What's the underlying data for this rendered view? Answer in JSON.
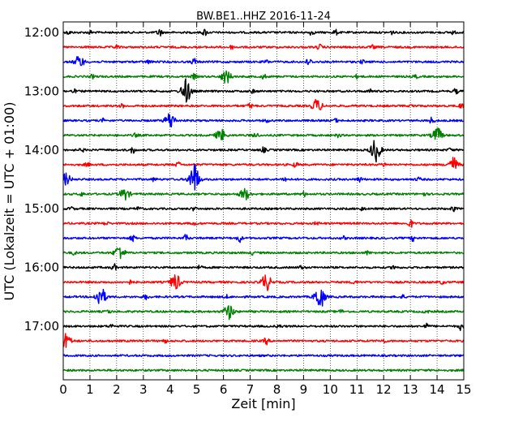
{
  "chart_data": {
    "type": "line",
    "title": "BW.BE1..HHZ 2016-11-24",
    "xlabel": "Zeit  [min]",
    "ylabel": "UTC (Lokalzeit = UTC + 01:00)",
    "xlim": [
      0,
      15
    ],
    "x_ticks": [
      "0",
      "1",
      "2",
      "3",
      "4",
      "5",
      "6",
      "7",
      "8",
      "9",
      "10",
      "11",
      "12",
      "13",
      "14",
      "15"
    ],
    "y_ticks": [
      "12:00",
      "13:00",
      "14:00",
      "15:00",
      "16:00",
      "17:00"
    ],
    "grid": "vertical dotted",
    "colors": [
      "#000000",
      "#ff0000",
      "#0000ff",
      "#008000"
    ],
    "traces": [
      {
        "start": "12:00",
        "events": [
          [
            3.6,
            5
          ],
          [
            5.3,
            4
          ],
          [
            9.3,
            3
          ],
          [
            10.2,
            3
          ],
          [
            0.2,
            2
          ],
          [
            1.0,
            2
          ],
          [
            12.3,
            2
          ],
          [
            14.6,
            2
          ]
        ]
      },
      {
        "start": "12:15",
        "events": [
          [
            9.6,
            3
          ],
          [
            2.0,
            2
          ],
          [
            6.3,
            2
          ],
          [
            11.6,
            2
          ]
        ]
      },
      {
        "start": "12:30",
        "events": [
          [
            0.6,
            7
          ],
          [
            9.2,
            5
          ],
          [
            4.9,
            4
          ],
          [
            3.2,
            2
          ],
          [
            7.6,
            2
          ],
          [
            11.2,
            2
          ]
        ]
      },
      {
        "start": "12:45",
        "events": [
          [
            6.1,
            8
          ],
          [
            4.9,
            3
          ],
          [
            7.5,
            3
          ],
          [
            1.1,
            2
          ],
          [
            11.0,
            2
          ],
          [
            13.2,
            2
          ]
        ]
      },
      {
        "start": "13:00",
        "events": [
          [
            4.6,
            15
          ],
          [
            14.7,
            3
          ],
          [
            0.4,
            2
          ],
          [
            7.1,
            2
          ],
          [
            11.5,
            2
          ]
        ]
      },
      {
        "start": "13:15",
        "events": [
          [
            9.5,
            8
          ],
          [
            7.0,
            3
          ],
          [
            14.9,
            3
          ],
          [
            2.2,
            2
          ],
          [
            13.1,
            2
          ]
        ]
      },
      {
        "start": "13:30",
        "events": [
          [
            4.0,
            10
          ],
          [
            13.8,
            4
          ],
          [
            1.5,
            2
          ],
          [
            7.6,
            2
          ],
          [
            10.2,
            2
          ]
        ]
      },
      {
        "start": "13:45",
        "events": [
          [
            5.9,
            7
          ],
          [
            14.0,
            9
          ],
          [
            7.2,
            4
          ],
          [
            2.7,
            2
          ],
          [
            10.3,
            2
          ]
        ]
      },
      {
        "start": "14:00",
        "events": [
          [
            11.7,
            14
          ],
          [
            2.6,
            4
          ],
          [
            7.5,
            3
          ],
          [
            0.7,
            2
          ],
          [
            14.5,
            2
          ]
        ]
      },
      {
        "start": "14:15",
        "events": [
          [
            14.6,
            9
          ],
          [
            4.3,
            3
          ],
          [
            8.7,
            3
          ],
          [
            0.9,
            2
          ],
          [
            12.0,
            2
          ]
        ]
      },
      {
        "start": "14:30",
        "events": [
          [
            4.9,
            20
          ],
          [
            0.1,
            7
          ],
          [
            8.3,
            3
          ],
          [
            11.1,
            3
          ],
          [
            3.4,
            2
          ],
          [
            13.3,
            2
          ]
        ]
      },
      {
        "start": "14:45",
        "events": [
          [
            2.3,
            7
          ],
          [
            6.8,
            7
          ],
          [
            9.0,
            3
          ],
          [
            0.7,
            2
          ],
          [
            13.5,
            2
          ]
        ]
      },
      {
        "start": "15:00",
        "events": [
          [
            14.6,
            3
          ],
          [
            2.8,
            2
          ],
          [
            4.9,
            2
          ],
          [
            0.3,
            2
          ],
          [
            11.2,
            2
          ]
        ]
      },
      {
        "start": "15:15",
        "events": [
          [
            13.0,
            5
          ],
          [
            4.9,
            2
          ],
          [
            9.5,
            2
          ],
          [
            1.6,
            2
          ]
        ]
      },
      {
        "start": "15:30",
        "events": [
          [
            6.6,
            5
          ],
          [
            4.6,
            4
          ],
          [
            2.6,
            4
          ],
          [
            13.1,
            3
          ],
          [
            10.5,
            2
          ]
        ]
      },
      {
        "start": "15:45",
        "events": [
          [
            2.1,
            9
          ],
          [
            7.1,
            2
          ],
          [
            11.4,
            2
          ],
          [
            0.4,
            2
          ]
        ]
      },
      {
        "start": "16:00",
        "events": [
          [
            1.9,
            4
          ],
          [
            12.4,
            3
          ],
          [
            5.1,
            2
          ],
          [
            8.9,
            2
          ]
        ]
      },
      {
        "start": "16:15",
        "events": [
          [
            4.2,
            10
          ],
          [
            7.6,
            10
          ],
          [
            2.5,
            2
          ],
          [
            10.9,
            2
          ],
          [
            14.2,
            2
          ]
        ]
      },
      {
        "start": "16:30",
        "events": [
          [
            9.6,
            15
          ],
          [
            1.4,
            12
          ],
          [
            3.1,
            3
          ],
          [
            6.1,
            2
          ],
          [
            12.7,
            2
          ]
        ]
      },
      {
        "start": "16:45",
        "events": [
          [
            6.2,
            9
          ],
          [
            10.4,
            2
          ],
          [
            1.7,
            2
          ],
          [
            13.6,
            2
          ]
        ]
      },
      {
        "start": "17:00",
        "events": [
          [
            14.9,
            5
          ],
          [
            13.6,
            3
          ],
          [
            1.8,
            2
          ],
          [
            8.1,
            2
          ]
        ]
      },
      {
        "start": "17:15",
        "events": [
          [
            0.1,
            9
          ],
          [
            7.6,
            4
          ],
          [
            12.0,
            2
          ],
          [
            3.8,
            2
          ]
        ]
      },
      {
        "start": "17:30",
        "events": []
      },
      {
        "start": "17:45",
        "events": []
      }
    ]
  }
}
